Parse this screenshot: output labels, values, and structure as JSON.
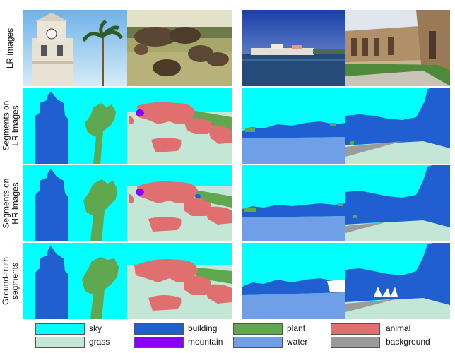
{
  "row_labels": {
    "lr_images": "LR images",
    "segments_lr": "Segments on\nLR images",
    "segments_hr": "Segments on\nHR images",
    "ground_truth": "Ground-truth\nsegments"
  },
  "legend": [
    {
      "label": "sky",
      "color": "#00ffff"
    },
    {
      "label": "building",
      "color": "#1f5fcf"
    },
    {
      "label": "plant",
      "color": "#5fa84f"
    },
    {
      "label": "animal",
      "color": "#e07070"
    },
    {
      "label": "grass",
      "color": "#c4e6d6"
    },
    {
      "label": "mountain",
      "color": "#8a00ff"
    },
    {
      "label": "water",
      "color": "#6f9fe6"
    },
    {
      "label": "background",
      "color": "#9a9a9a"
    }
  ]
}
